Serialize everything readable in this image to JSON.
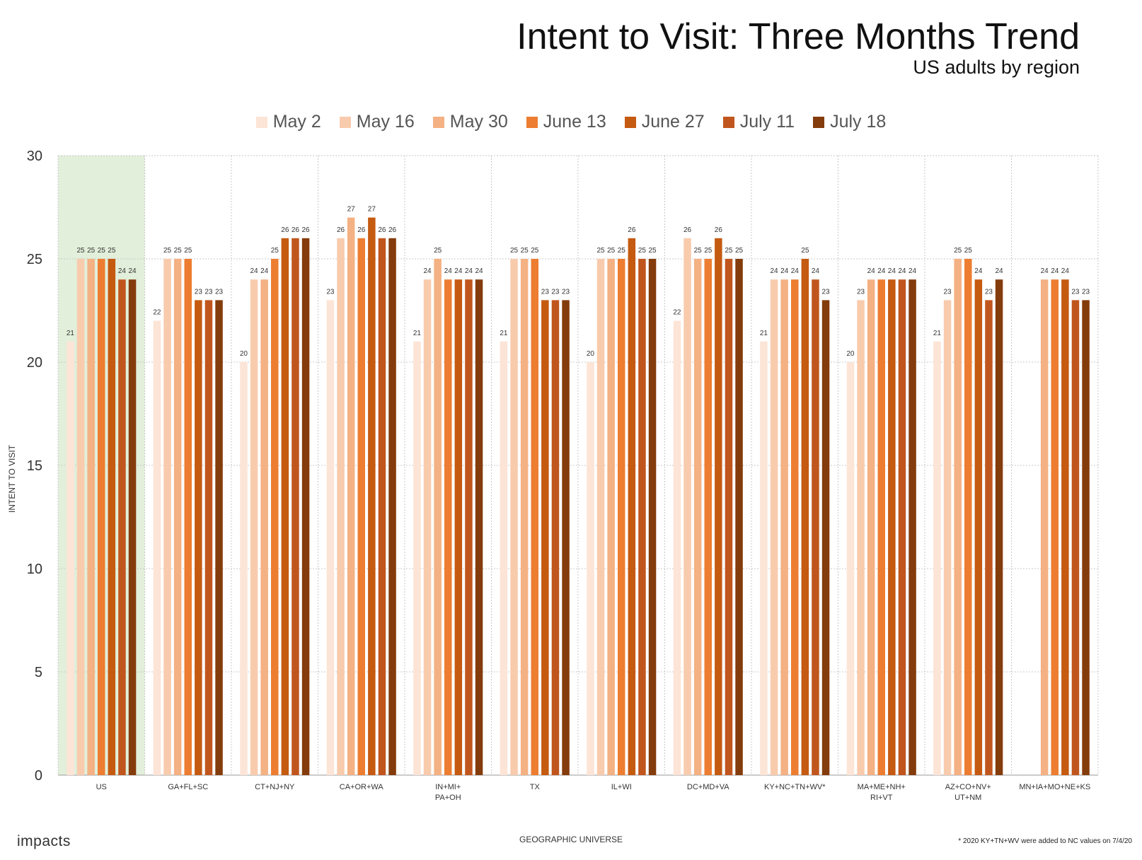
{
  "title": "Intent to Visit: Three Months Trend",
  "subtitle": "US adults by region",
  "logo": "impacts",
  "footnote": "* 2020 KY+TN+WV were added to NC values on 7/4/20",
  "chart_data": {
    "type": "bar",
    "xlabel": "GEOGRAPHIC UNIVERSE",
    "ylabel": "INTENT TO VISIT",
    "ylim": [
      0,
      30
    ],
    "yticks": [
      0,
      5,
      10,
      15,
      20,
      25,
      30
    ],
    "grid": true,
    "legend_position": "top",
    "highlight_category": "US",
    "highlight_color": "#e2efda",
    "categories": [
      [
        "US"
      ],
      [
        "GA+FL+SC"
      ],
      [
        "CT+NJ+NY"
      ],
      [
        "CA+OR+WA"
      ],
      [
        "IN+MI+",
        "PA+OH"
      ],
      [
        "TX"
      ],
      [
        "IL+WI"
      ],
      [
        "DC+MD+VA"
      ],
      [
        "KY+NC+TN+WV*"
      ],
      [
        "MA+ME+NH+",
        "RI+VT"
      ],
      [
        "AZ+CO+NV+",
        "UT+NM"
      ],
      [
        "MN+IA+MO+NE+KS"
      ]
    ],
    "series": [
      {
        "name": "May 2",
        "color": "#fce4d6",
        "values": [
          21,
          22,
          20,
          23,
          21,
          21,
          20,
          22,
          21,
          20,
          21,
          null
        ]
      },
      {
        "name": "May 16",
        "color": "#f8cbad",
        "values": [
          25,
          25,
          24,
          26,
          24,
          25,
          25,
          26,
          24,
          23,
          23,
          null
        ]
      },
      {
        "name": "May 30",
        "color": "#f4b183",
        "values": [
          25,
          25,
          24,
          27,
          25,
          25,
          25,
          25,
          24,
          24,
          25,
          24
        ]
      },
      {
        "name": "June 13",
        "color": "#ed7d31",
        "values": [
          25,
          25,
          25,
          26,
          24,
          25,
          25,
          25,
          24,
          24,
          25,
          24
        ]
      },
      {
        "name": "June 27",
        "color": "#c55a11",
        "values": [
          25,
          23,
          26,
          27,
          24,
          23,
          26,
          26,
          25,
          24,
          24,
          24
        ]
      },
      {
        "name": "July 11",
        "color": "#c0561e",
        "values": [
          24,
          23,
          26,
          26,
          24,
          23,
          25,
          25,
          24,
          24,
          23,
          23
        ]
      },
      {
        "name": "July 18",
        "color": "#843c0c",
        "values": [
          24,
          23,
          26,
          26,
          24,
          23,
          25,
          25,
          23,
          24,
          24,
          23
        ]
      }
    ]
  }
}
